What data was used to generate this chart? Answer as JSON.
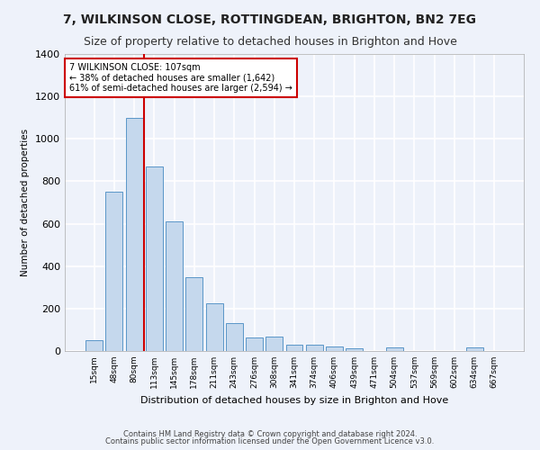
{
  "title": "7, WILKINSON CLOSE, ROTTINGDEAN, BRIGHTON, BN2 7EG",
  "subtitle": "Size of property relative to detached houses in Brighton and Hove",
  "xlabel": "Distribution of detached houses by size in Brighton and Hove",
  "ylabel": "Number of detached properties",
  "footnote1": "Contains HM Land Registry data © Crown copyright and database right 2024.",
  "footnote2": "Contains public sector information licensed under the Open Government Licence v3.0.",
  "categories": [
    "15sqm",
    "48sqm",
    "80sqm",
    "113sqm",
    "145sqm",
    "178sqm",
    "211sqm",
    "243sqm",
    "276sqm",
    "308sqm",
    "341sqm",
    "374sqm",
    "406sqm",
    "439sqm",
    "471sqm",
    "504sqm",
    "537sqm",
    "569sqm",
    "602sqm",
    "634sqm",
    "667sqm"
  ],
  "values": [
    50,
    750,
    1100,
    870,
    610,
    350,
    225,
    130,
    65,
    68,
    30,
    28,
    20,
    12,
    0,
    15,
    0,
    0,
    0,
    15,
    0
  ],
  "bar_color": "#c5d8ed",
  "bar_edge_color": "#5a96c8",
  "property_line_x": 3.0,
  "property_label": "7 WILKINSON CLOSE: 107sqm",
  "annotation_line1": "← 38% of detached houses are smaller (1,642)",
  "annotation_line2": "61% of semi-detached houses are larger (2,594) →",
  "annotation_box_color": "#ffffff",
  "annotation_box_edge": "#cc0000",
  "vline_color": "#cc0000",
  "ylim": [
    0,
    1400
  ],
  "yticks": [
    0,
    200,
    400,
    600,
    800,
    1000,
    1200,
    1400
  ],
  "bg_color": "#eef2fa",
  "plot_bg_color": "#eef2fa",
  "grid_color": "#ffffff",
  "title_fontsize": 10,
  "subtitle_fontsize": 9
}
